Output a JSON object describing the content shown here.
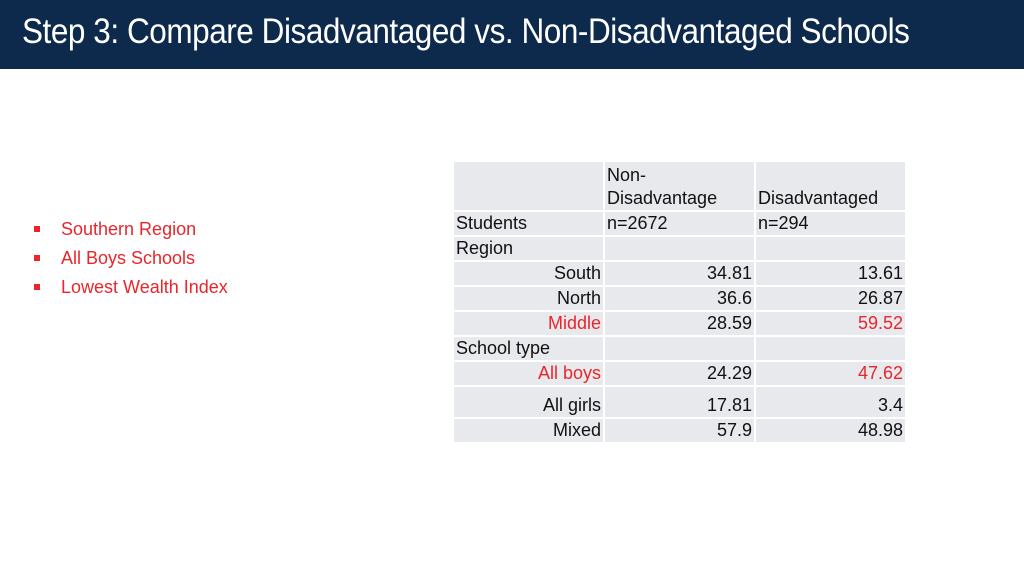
{
  "title": "Step 3: Compare Disadvantaged vs. Non-Disadvantaged Schools",
  "bullets": [
    "Southern Region",
    "All Boys Schools",
    "Lowest Wealth Index"
  ],
  "table": {
    "header": {
      "col2_line1": "Non-",
      "col2_line2": "Disadvantage",
      "col3_line2": "Disadvantaged"
    },
    "students": {
      "label": "Students",
      "col2": "n=2672",
      "col3": "n=294"
    },
    "region_label": "Region",
    "region_rows": [
      {
        "label": "South",
        "col2": "34.81",
        "col3": "13.61"
      },
      {
        "label": "North",
        "col2": "36.6",
        "col3": "26.87"
      },
      {
        "label": "Middle",
        "col2": "28.59",
        "col3": "59.52"
      }
    ],
    "school_type_label": "School type",
    "school_rows": [
      {
        "label": "All boys",
        "col2": "24.29",
        "col3": "47.62"
      },
      {
        "label": "All girls",
        "col2": "17.81",
        "col3": "3.4"
      },
      {
        "label": "Mixed",
        "col2": "57.9",
        "col3": "48.98"
      }
    ]
  },
  "colors": {
    "header_bg": "#0d2a4c",
    "highlight": "#e8262b",
    "cell_bg": "#e8e9ed"
  }
}
